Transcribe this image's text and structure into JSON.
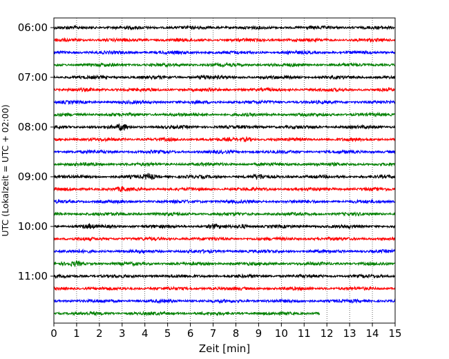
{
  "chart_data": {
    "type": "line",
    "title": "",
    "xlabel": "Zeit  [min]",
    "ylabel": "UTC (Lokalzeit = UTC + 02:00)",
    "xlim": [
      0,
      15
    ],
    "x_ticks": [
      "0",
      "1",
      "2",
      "3",
      "4",
      "5",
      "6",
      "7",
      "8",
      "9",
      "10",
      "11",
      "12",
      "13",
      "14",
      "15"
    ],
    "y_ticks": [
      {
        "label": "06:00",
        "row": 0
      },
      {
        "label": "07:00",
        "row": 4
      },
      {
        "label": "08:00",
        "row": 8
      },
      {
        "label": "09:00",
        "row": 12
      },
      {
        "label": "10:00",
        "row": 16
      },
      {
        "label": "11:00",
        "row": 20
      }
    ],
    "grid": "vertical dotted lines at each minute",
    "trace_colors": [
      "#000000",
      "#ff0000",
      "#0000ff",
      "#008000"
    ],
    "traces": [
      {
        "start": "06:00",
        "color": "#000000"
      },
      {
        "start": "06:15",
        "color": "#ff0000"
      },
      {
        "start": "06:30",
        "color": "#0000ff"
      },
      {
        "start": "06:45",
        "color": "#008000"
      },
      {
        "start": "07:00",
        "color": "#000000"
      },
      {
        "start": "07:15",
        "color": "#ff0000"
      },
      {
        "start": "07:30",
        "color": "#0000ff"
      },
      {
        "start": "07:45",
        "color": "#008000"
      },
      {
        "start": "08:00",
        "color": "#000000"
      },
      {
        "start": "08:15",
        "color": "#ff0000"
      },
      {
        "start": "08:30",
        "color": "#0000ff"
      },
      {
        "start": "08:45",
        "color": "#008000"
      },
      {
        "start": "09:00",
        "color": "#000000"
      },
      {
        "start": "09:15",
        "color": "#ff0000"
      },
      {
        "start": "09:30",
        "color": "#0000ff"
      },
      {
        "start": "09:45",
        "color": "#008000"
      },
      {
        "start": "10:00",
        "color": "#000000"
      },
      {
        "start": "10:15",
        "color": "#ff0000"
      },
      {
        "start": "10:30",
        "color": "#0000ff"
      },
      {
        "start": "10:45",
        "color": "#008000"
      },
      {
        "start": "11:00",
        "color": "#000000"
      },
      {
        "start": "11:15",
        "color": "#ff0000"
      },
      {
        "start": "11:30",
        "color": "#0000ff"
      },
      {
        "start": "11:45",
        "color": "#008000",
        "end_min": 11.7
      }
    ],
    "events": [
      {
        "row": 4,
        "minute": 6.6,
        "amp": 2.2
      },
      {
        "row": 8,
        "minute": 3.0,
        "amp": 4.0
      },
      {
        "row": 9,
        "minute": 8.5,
        "amp": 1.8
      },
      {
        "row": 12,
        "minute": 4.2,
        "amp": 3.6
      },
      {
        "row": 12,
        "minute": 9.0,
        "amp": 2.4
      },
      {
        "row": 13,
        "minute": 3.0,
        "amp": 2.0
      },
      {
        "row": 16,
        "minute": 1.5,
        "amp": 1.8
      },
      {
        "row": 16,
        "minute": 7.0,
        "amp": 1.8
      },
      {
        "row": 16,
        "minute": 8.3,
        "amp": 2.0
      },
      {
        "row": 19,
        "minute": 1.0,
        "amp": 2.0
      }
    ]
  }
}
